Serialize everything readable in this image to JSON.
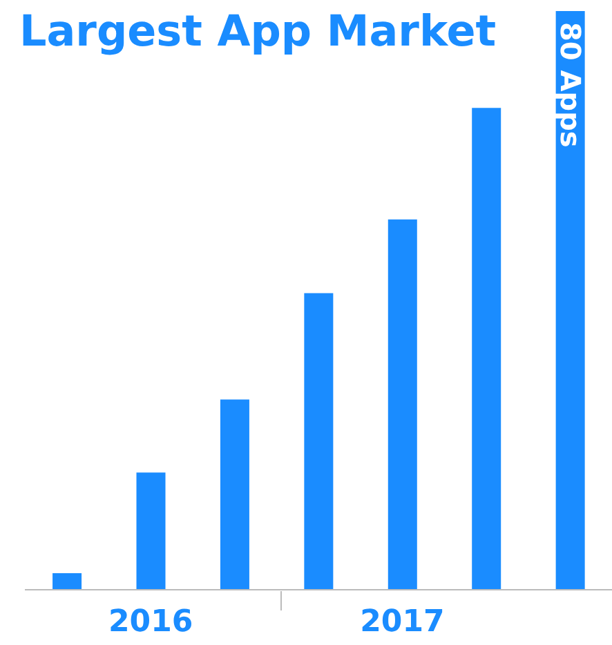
{
  "chart_data": {
    "type": "bar",
    "title": "Largest App Market",
    "categories": [
      null,
      "2016",
      null,
      null,
      "2017",
      null,
      null
    ],
    "values": [
      2.3,
      16.2,
      26.3,
      41,
      51.2,
      66.6,
      80
    ],
    "value_labels": [
      null,
      null,
      null,
      null,
      null,
      null,
      "80 Apps"
    ],
    "color": "#1a8cff",
    "ylim": [
      0,
      80
    ],
    "tick_labels": "x"
  }
}
